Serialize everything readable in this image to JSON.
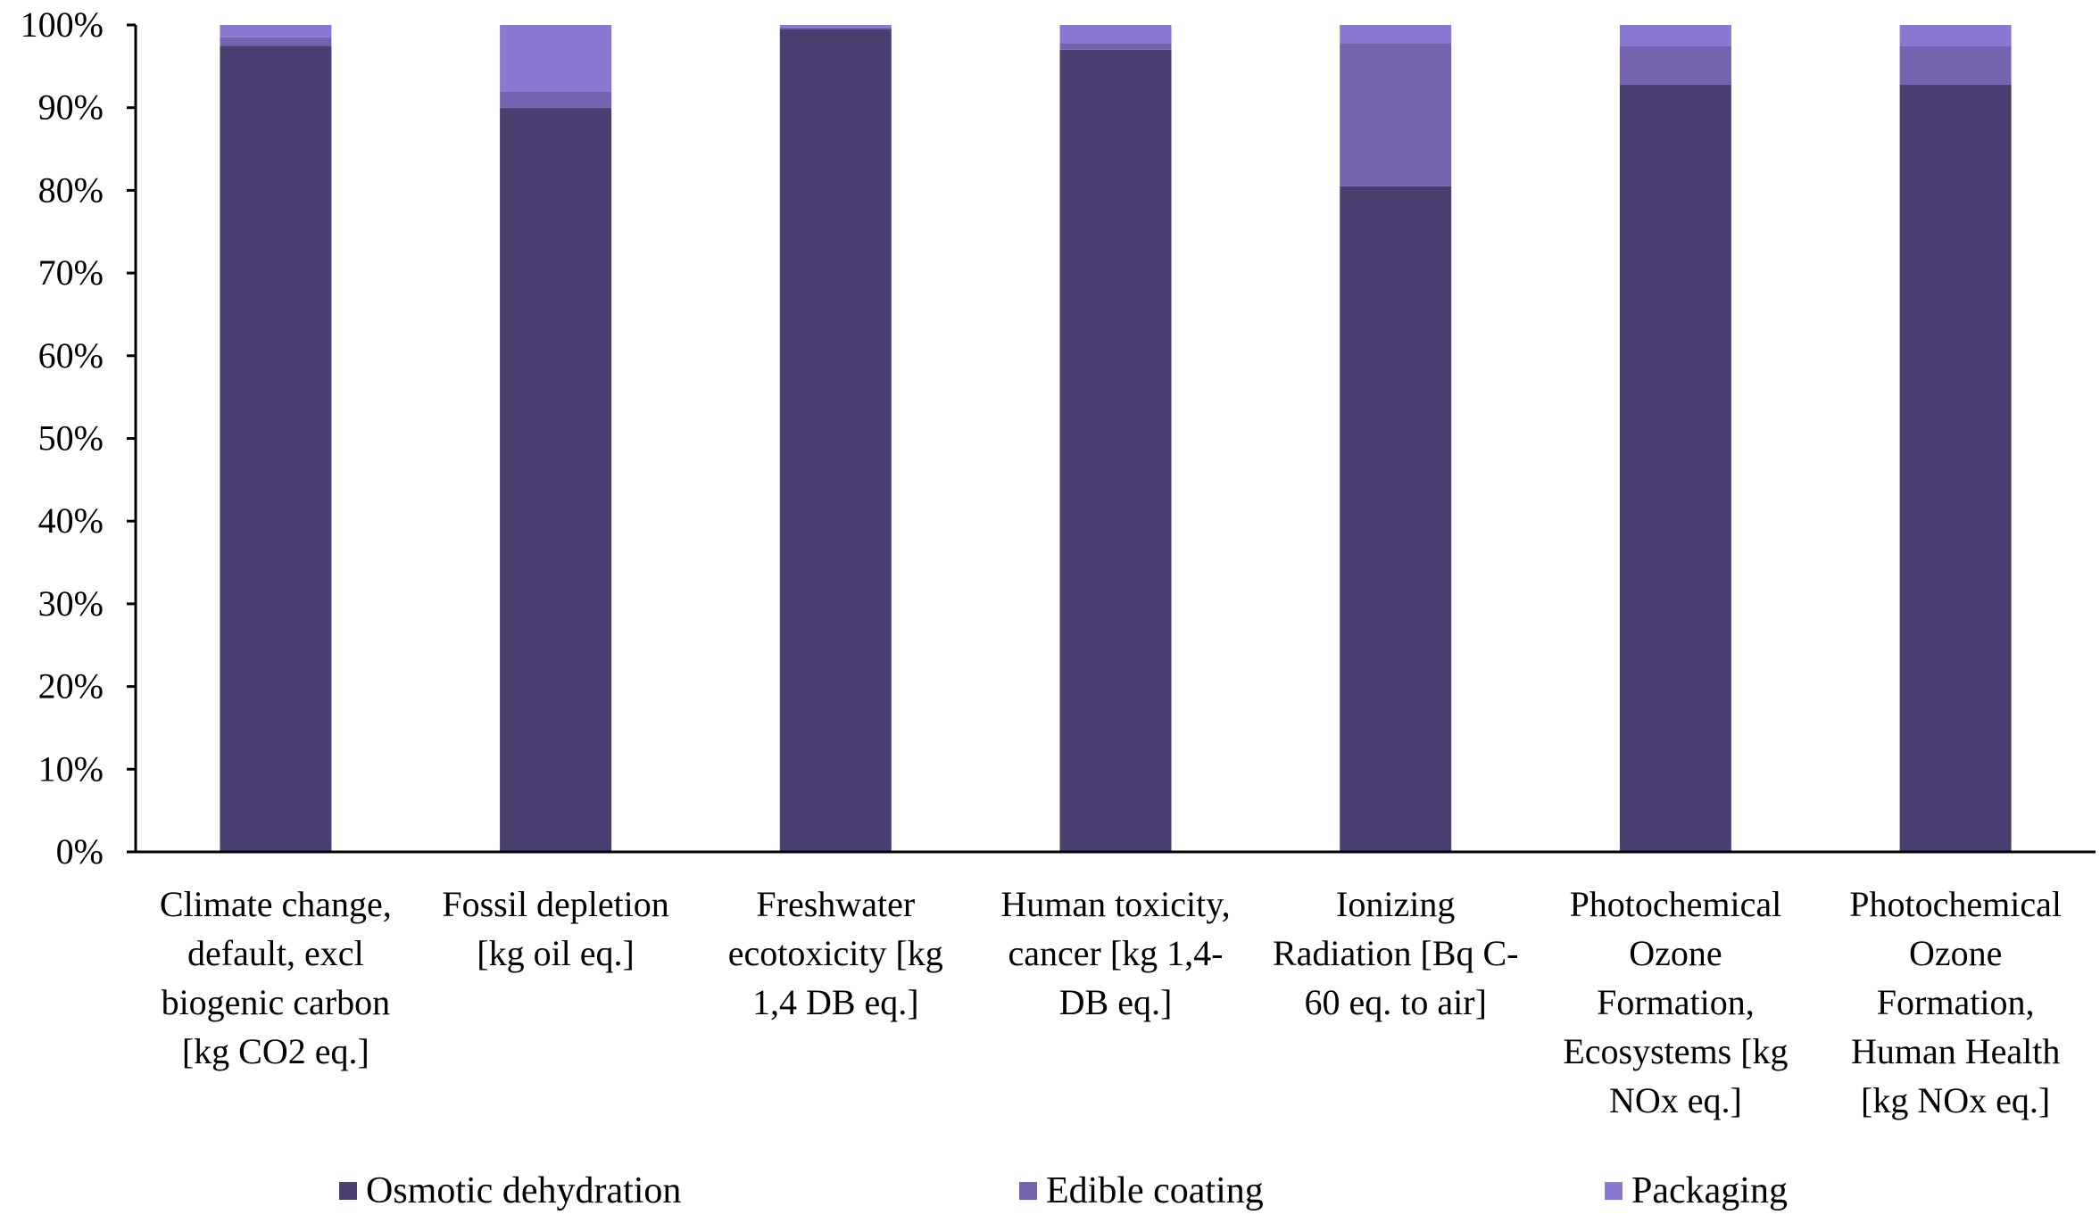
{
  "chart_data": {
    "type": "bar",
    "stacked": true,
    "percent_stacked": true,
    "title": "",
    "xlabel": "",
    "ylabel": "",
    "ylim": [
      0,
      100
    ],
    "y_ticks": [
      "0%",
      "10%",
      "20%",
      "30%",
      "40%",
      "50%",
      "60%",
      "70%",
      "80%",
      "90%",
      "100%"
    ],
    "grid": false,
    "legend_position": "bottom",
    "categories": [
      [
        "Climate change,",
        "default, excl",
        "biogenic carbon",
        "[kg CO2 eq.]"
      ],
      [
        "Fossil depletion",
        "[kg oil eq.]"
      ],
      [
        "Freshwater",
        "ecotoxicity [kg",
        "1,4 DB eq.]"
      ],
      [
        "Human toxicity,",
        "cancer [kg 1,4-",
        "DB eq.]"
      ],
      [
        "Ionizing",
        "Radiation [Bq C-",
        "60 eq. to air]"
      ],
      [
        "Photochemical",
        "Ozone",
        "Formation,",
        "Ecosystems [kg",
        "NOx eq.]"
      ],
      [
        "Photochemical",
        "Ozone",
        "Formation,",
        "Human Health",
        "[kg NOx eq.]"
      ]
    ],
    "series": [
      {
        "name": "Osmotic dehydration",
        "color": "#4b3f72",
        "values": [
          97.5,
          90.0,
          99.5,
          97.0,
          80.5,
          92.8,
          92.8
        ]
      },
      {
        "name": "Edible coating",
        "color": "#7563b0",
        "values": [
          1.0,
          2.0,
          0.2,
          0.8,
          17.3,
          4.7,
          4.7
        ]
      },
      {
        "name": "Packaging",
        "color": "#8b78d2",
        "values": [
          1.5,
          8.0,
          0.3,
          2.2,
          2.2,
          2.5,
          2.5
        ]
      }
    ]
  }
}
